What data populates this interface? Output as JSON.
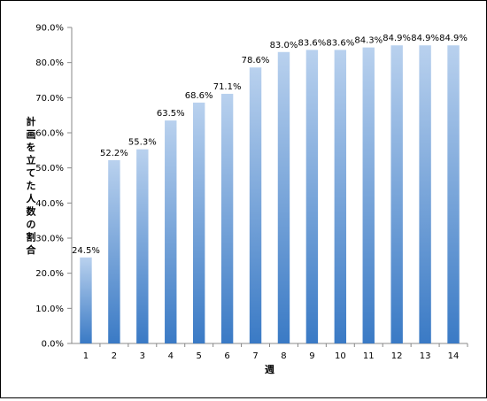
{
  "chart_data": {
    "type": "bar",
    "categories": [
      "1",
      "2",
      "3",
      "4",
      "5",
      "6",
      "7",
      "8",
      "9",
      "10",
      "11",
      "12",
      "13",
      "14"
    ],
    "values": [
      24.5,
      52.2,
      55.3,
      63.5,
      68.6,
      71.1,
      78.6,
      83.0,
      83.6,
      83.6,
      84.3,
      84.9,
      84.9,
      84.9
    ],
    "value_labels": [
      "24.5%",
      "52.2%",
      "55.3%",
      "63.5%",
      "68.6%",
      "71.1%",
      "78.6%",
      "83.0%",
      "83.6%",
      "83.6%",
      "84.3%",
      "84.9%",
      "84.9%",
      "84.9%"
    ],
    "y_ticks": [
      "0.0%",
      "10.0%",
      "20.0%",
      "30.0%",
      "40.0%",
      "50.0%",
      "60.0%",
      "70.0%",
      "80.0%",
      "90.0%"
    ],
    "xlabel": "週",
    "ylabel": "計画を立てた人数の割合",
    "ylim": [
      0,
      90
    ],
    "grid": false,
    "legend": "none",
    "bar_color_top": "#b9d1ee",
    "bar_color_bottom": "#3a7ac5"
  }
}
